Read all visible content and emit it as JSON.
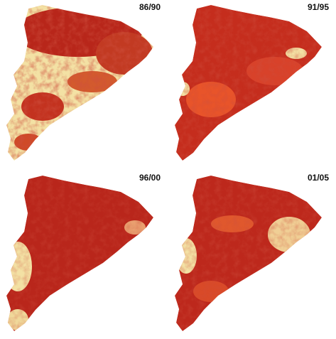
{
  "panels": [
    {
      "label": "86/90"
    },
    {
      "label": "91/95"
    },
    {
      "label": "96/00"
    },
    {
      "label": "01/05"
    }
  ]
}
